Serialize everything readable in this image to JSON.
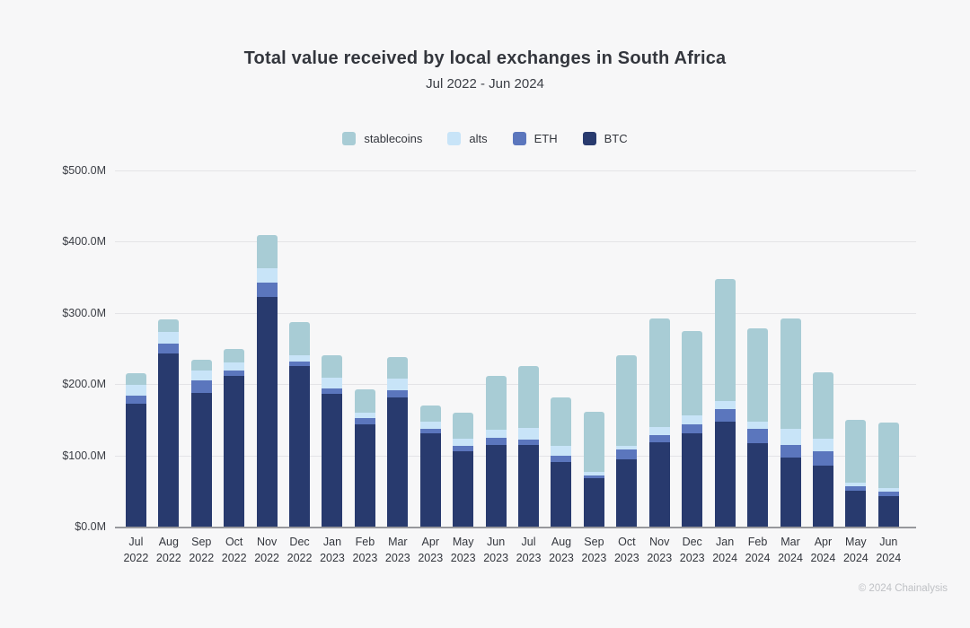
{
  "header": {
    "title": "Total value received by local exchanges in South Africa",
    "subtitle": "Jul 2022 - Jun 2024"
  },
  "legend": {
    "items": [
      {
        "label": "stablecoins",
        "color": "#a8ccd5"
      },
      {
        "label": "alts",
        "color": "#c8e4f8"
      },
      {
        "label": "ETH",
        "color": "#5b76bd"
      },
      {
        "label": "BTC",
        "color": "#283a6e"
      }
    ]
  },
  "footer": {
    "copyright": "© 2024 Chainalysis"
  },
  "chart_data": {
    "type": "bar",
    "subtype": "stacked-vertical",
    "title": "Total value received by local exchanges in South Africa",
    "subtitle": "Jul 2022 - Jun 2024",
    "unit": "USD millions",
    "ylim": [
      0,
      500
    ],
    "y_ticks": [
      {
        "value": 0,
        "label": "$0.0M"
      },
      {
        "value": 100,
        "label": "$100.0M"
      },
      {
        "value": 200,
        "label": "$200.0M"
      },
      {
        "value": 300,
        "label": "$300.0M"
      },
      {
        "value": 400,
        "label": "$400.0M"
      },
      {
        "value": 500,
        "label": "$500.0M"
      }
    ],
    "categories": [
      {
        "month": "Jul",
        "year": "2022"
      },
      {
        "month": "Aug",
        "year": "2022"
      },
      {
        "month": "Sep",
        "year": "2022"
      },
      {
        "month": "Oct",
        "year": "2022"
      },
      {
        "month": "Nov",
        "year": "2022"
      },
      {
        "month": "Dec",
        "year": "2022"
      },
      {
        "month": "Jan",
        "year": "2023"
      },
      {
        "month": "Feb",
        "year": "2023"
      },
      {
        "month": "Mar",
        "year": "2023"
      },
      {
        "month": "Apr",
        "year": "2023"
      },
      {
        "month": "May",
        "year": "2023"
      },
      {
        "month": "Jun",
        "year": "2023"
      },
      {
        "month": "Jul",
        "year": "2023"
      },
      {
        "month": "Aug",
        "year": "2023"
      },
      {
        "month": "Sep",
        "year": "2023"
      },
      {
        "month": "Oct",
        "year": "2023"
      },
      {
        "month": "Nov",
        "year": "2023"
      },
      {
        "month": "Dec",
        "year": "2023"
      },
      {
        "month": "Jan",
        "year": "2024"
      },
      {
        "month": "Feb",
        "year": "2024"
      },
      {
        "month": "Mar",
        "year": "2024"
      },
      {
        "month": "Apr",
        "year": "2024"
      },
      {
        "month": "May",
        "year": "2024"
      },
      {
        "month": "Jun",
        "year": "2024"
      }
    ],
    "stack_order_bottom_to_top": [
      "BTC",
      "ETH",
      "alts",
      "stablecoins"
    ],
    "series": [
      {
        "name": "BTC",
        "color": "#283a6e",
        "values": [
          172,
          243,
          188,
          211,
          323,
          225,
          186,
          144,
          182,
          131,
          106,
          115,
          115,
          91,
          68,
          95,
          118,
          131,
          148,
          117,
          97,
          86,
          50,
          43
        ]
      },
      {
        "name": "ETH",
        "color": "#5b76bd",
        "values": [
          12,
          14,
          17,
          8,
          20,
          7,
          8,
          8,
          10,
          6,
          7,
          10,
          7,
          8,
          4,
          13,
          10,
          13,
          17,
          20,
          18,
          20,
          7,
          6
        ]
      },
      {
        "name": "alts",
        "color": "#c8e4f8",
        "values": [
          15,
          16,
          14,
          11,
          20,
          8,
          15,
          8,
          16,
          11,
          10,
          11,
          16,
          15,
          5,
          6,
          12,
          12,
          12,
          11,
          22,
          17,
          5,
          5
        ]
      },
      {
        "name": "stablecoins",
        "color": "#a8ccd5",
        "values": [
          16,
          18,
          15,
          20,
          46,
          47,
          32,
          33,
          30,
          22,
          37,
          76,
          88,
          68,
          84,
          127,
          152,
          118,
          171,
          131,
          155,
          94,
          88,
          92
        ]
      }
    ],
    "totals": [
      215,
      291,
      234,
      250,
      409,
      287,
      241,
      193,
      238,
      170,
      160,
      212,
      226,
      182,
      161,
      241,
      292,
      274,
      348,
      279,
      292,
      217,
      150,
      146
    ],
    "grid": "horizontal",
    "legend_position": "top-center"
  }
}
